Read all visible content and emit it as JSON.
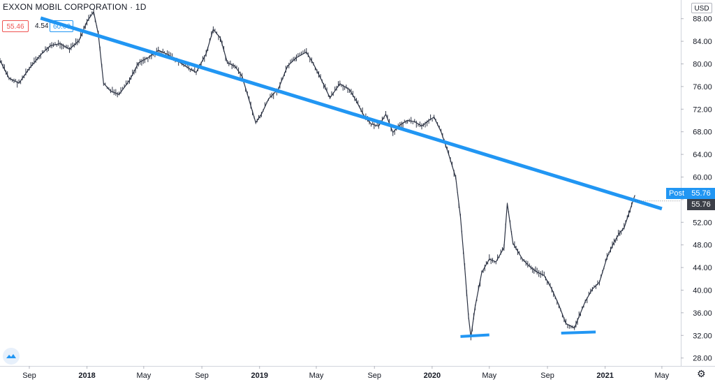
{
  "header": {
    "title": "EXXON MOBIL CORPORATION · 1D",
    "bid": "55.46",
    "spread": "4.54",
    "ask": "60.00"
  },
  "currency_button": "USD",
  "price_labels": {
    "post_label": "Post",
    "post_price": "55.76",
    "last_price": "55.76"
  },
  "colors": {
    "candle": "#2a3142",
    "trendline": "#2196f3",
    "grid": "#eef0f3",
    "bid": "#ef5350",
    "ask": "#2196f3"
  },
  "icons": [
    "tradingview-logo-icon",
    "gear-icon"
  ],
  "chart_data": {
    "type": "line",
    "title": "EXXON MOBIL CORPORATION · 1D",
    "x_ticks": [
      "Sep",
      "2018",
      "May",
      "Sep",
      "2019",
      "May",
      "Sep",
      "2020",
      "May",
      "Sep",
      "2021",
      "May"
    ],
    "y_ticks": [
      "28.00",
      "32.00",
      "36.00",
      "40.00",
      "44.00",
      "48.00",
      "52.00",
      "56.00",
      "60.00",
      "64.00",
      "68.00",
      "72.00",
      "76.00",
      "80.00",
      "84.00",
      "88.00"
    ],
    "ylim": [
      26.6,
      91.3
    ],
    "xlim": [
      "2017-07-01",
      "2021-06-10"
    ],
    "y_axis_position": "right",
    "grid": false,
    "series": [
      {
        "x": [
          "2017-07-01",
          "2017-07-20",
          "2017-08-10",
          "2017-09-01",
          "2017-09-25",
          "2017-10-15",
          "2017-11-05",
          "2017-11-25",
          "2017-12-15",
          "2018-01-01",
          "2018-01-15",
          "2018-01-25",
          "2018-02-05",
          "2018-02-20",
          "2018-03-10",
          "2018-04-01",
          "2018-04-20",
          "2018-05-10",
          "2018-06-01",
          "2018-06-20",
          "2018-07-10",
          "2018-08-01",
          "2018-08-20",
          "2018-09-10",
          "2018-09-25",
          "2018-10-10",
          "2018-10-25",
          "2018-11-10",
          "2018-11-25",
          "2018-12-10",
          "2018-12-24",
          "2019-01-05",
          "2019-01-20",
          "2019-02-10",
          "2019-03-01",
          "2019-03-20",
          "2019-04-10",
          "2019-04-25",
          "2019-05-10",
          "2019-05-30",
          "2019-06-20",
          "2019-07-10",
          "2019-07-25",
          "2019-08-10",
          "2019-08-25",
          "2019-09-10",
          "2019-09-25",
          "2019-10-10",
          "2019-10-25",
          "2019-11-10",
          "2019-11-25",
          "2019-12-10",
          "2019-12-25",
          "2020-01-05",
          "2020-01-20",
          "2020-02-05",
          "2020-02-20",
          "2020-03-01",
          "2020-03-10",
          "2020-03-18",
          "2020-03-23",
          "2020-04-01",
          "2020-04-15",
          "2020-05-01",
          "2020-05-15",
          "2020-06-01",
          "2020-06-08",
          "2020-06-20",
          "2020-07-10",
          "2020-07-25",
          "2020-08-10",
          "2020-08-25",
          "2020-09-10",
          "2020-09-25",
          "2020-10-10",
          "2020-10-28",
          "2020-11-10",
          "2020-11-20",
          "2020-12-05",
          "2020-12-20",
          "2021-01-05",
          "2021-01-20",
          "2021-02-01",
          "2021-02-10",
          "2021-02-20",
          "2021-03-01",
          "2021-03-05"
        ],
        "values": [
          80.6,
          77.5,
          76.6,
          79.2,
          81.6,
          83.2,
          83.6,
          82.6,
          84.1,
          87.5,
          89.2,
          85.3,
          76.6,
          75.2,
          74.6,
          77.1,
          80.2,
          81.1,
          82.4,
          81.7,
          80.6,
          79.4,
          78.5,
          81.8,
          86.1,
          84.6,
          80.2,
          79.6,
          77.8,
          73.6,
          69.6,
          71.1,
          73.8,
          75.6,
          79.6,
          81.1,
          82.1,
          80.0,
          77.5,
          74.0,
          76.5,
          75.5,
          73.4,
          70.8,
          69.4,
          69.0,
          71.1,
          67.9,
          69.2,
          70.0,
          69.8,
          69.0,
          70.0,
          70.6,
          68.0,
          64.0,
          59.9,
          52.9,
          44.0,
          35.3,
          31.7,
          37.1,
          43.1,
          45.5,
          45.0,
          47.5,
          55.3,
          48.3,
          45.5,
          44.2,
          43.2,
          42.6,
          40.2,
          37.4,
          34.1,
          33.3,
          36.0,
          38.0,
          40.2,
          41.4,
          45.8,
          48.5,
          50.2,
          51.0,
          53.5,
          55.8,
          56.8
        ]
      }
    ],
    "annotations": [
      {
        "type": "trendline",
        "from": [
          "2017-09-25",
          88.1
        ],
        "to": [
          "2021-05-01",
          54.4
        ]
      },
      {
        "type": "support_line",
        "from": [
          "2020-03-01",
          31.8
        ],
        "to": [
          "2020-05-01",
          32.1
        ]
      },
      {
        "type": "support_line",
        "from": [
          "2020-09-30",
          32.4
        ],
        "to": [
          "2020-12-12",
          32.6
        ]
      }
    ]
  }
}
